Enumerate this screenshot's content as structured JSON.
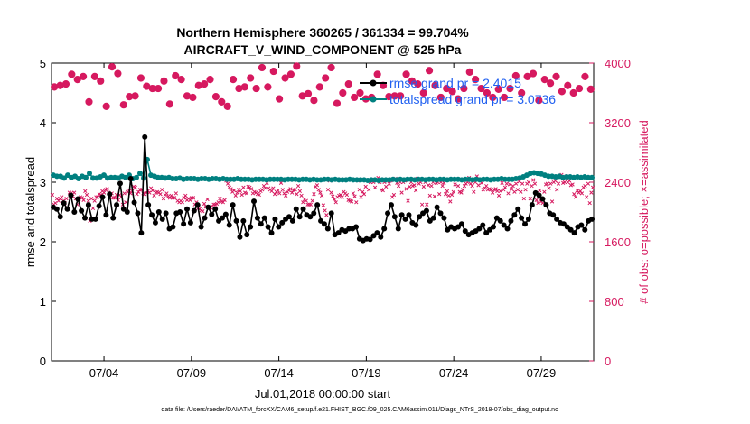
{
  "chart_data": {
    "type": "line",
    "title_line1": "Northern Hemisphere 360265 / 361334 = 99.704%",
    "title_line2": "AIRCRAFT_V_WIND_COMPONENT @ 525 hPa",
    "xlabel": "Jul.01,2018 00:00:00 start",
    "ylabel_left": "rmse and totalspread",
    "ylabel_right": "# of obs: o=possible; ×=assimilated",
    "ylim_left": [
      0,
      5
    ],
    "ylim_right": [
      0,
      4000
    ],
    "xlim_days": [
      1,
      32
    ],
    "x_ticks": [
      {
        "day": 4,
        "label": "07/04"
      },
      {
        "day": 9,
        "label": "07/09"
      },
      {
        "day": 14,
        "label": "07/14"
      },
      {
        "day": 19,
        "label": "07/19"
      },
      {
        "day": 24,
        "label": "07/24"
      },
      {
        "day": 29,
        "label": "07/29"
      }
    ],
    "y_ticks_left": [
      "0",
      "1",
      "2",
      "3",
      "4",
      "5"
    ],
    "y_ticks_right": [
      "0",
      "800",
      "1600",
      "2400",
      "3200",
      "4000"
    ],
    "legend": [
      {
        "label": "rmse grand pr = 2.4015",
        "color": "#000000"
      },
      {
        "label": "totalspread grand pr = 3.0736",
        "color": "#008080"
      }
    ],
    "series": [
      {
        "name": "rmse",
        "axis": "left",
        "color": "#000000",
        "values": [
          2.58,
          2.55,
          2.42,
          2.65,
          2.55,
          2.78,
          2.5,
          2.72,
          2.52,
          2.4,
          2.62,
          2.38,
          2.38,
          2.6,
          2.75,
          2.45,
          2.8,
          2.4,
          2.62,
          2.98,
          2.55,
          2.5,
          3.06,
          2.66,
          2.48,
          2.15,
          3.76,
          2.62,
          2.45,
          2.32,
          2.5,
          2.38,
          2.48,
          2.22,
          2.25,
          2.48,
          2.5,
          2.3,
          2.55,
          2.32,
          2.52,
          2.62,
          2.25,
          2.4,
          2.58,
          2.46,
          2.55,
          2.35,
          2.4,
          2.46,
          2.28,
          2.62,
          2.35,
          2.08,
          2.35,
          2.12,
          2.25,
          2.68,
          2.4,
          2.3,
          2.4,
          2.25,
          2.15,
          2.38,
          2.25,
          2.32,
          2.38,
          2.42,
          2.35,
          2.55,
          2.42,
          2.55,
          2.45,
          2.42,
          2.48,
          2.62,
          2.35,
          2.3,
          2.22,
          2.48,
          2.12,
          2.15,
          2.2,
          2.18,
          2.22,
          2.22,
          2.25,
          2.05,
          2.02,
          2.05,
          2.04,
          2.1,
          2.15,
          2.08,
          2.22,
          2.48,
          2.62,
          2.42,
          2.22,
          2.45,
          2.38,
          2.45,
          2.32,
          2.28,
          2.42,
          2.48,
          2.52,
          2.35,
          2.4,
          2.58,
          2.48,
          2.4,
          2.2,
          2.25,
          2.22,
          2.25,
          2.3,
          2.18,
          2.12,
          2.15,
          2.18,
          2.22,
          2.28,
          2.15,
          2.2,
          2.25,
          2.4,
          2.35,
          2.28,
          2.22,
          2.35,
          2.45,
          2.55,
          2.4,
          2.3,
          2.38,
          2.62,
          2.82,
          2.78,
          2.72,
          2.62,
          2.48,
          2.45,
          2.38,
          2.32,
          2.3,
          2.25,
          2.2,
          2.15,
          2.25,
          2.28,
          2.2,
          2.35,
          2.38
        ]
      },
      {
        "name": "totalspread",
        "axis": "left",
        "color": "#008080",
        "values": [
          3.12,
          3.1,
          3.1,
          3.07,
          3.12,
          3.08,
          3.1,
          3.06,
          3.1,
          3.08,
          3.15,
          3.07,
          3.07,
          3.09,
          3.12,
          3.07,
          3.08,
          3.08,
          3.07,
          3.1,
          3.08,
          3.12,
          3.06,
          3.08,
          3.15,
          3.07,
          3.38,
          3.12,
          3.1,
          3.08,
          3.08,
          3.07,
          3.08,
          3.06,
          3.06,
          3.07,
          3.05,
          3.06,
          3.06,
          3.06,
          3.05,
          3.06,
          3.06,
          3.05,
          3.06,
          3.06,
          3.05,
          3.06,
          3.05,
          3.05,
          3.05,
          3.06,
          3.05,
          3.05,
          3.05,
          3.04,
          3.05,
          3.05,
          3.05,
          3.04,
          3.05,
          3.05,
          3.05,
          3.05,
          3.04,
          3.05,
          3.05,
          3.05,
          3.04,
          3.05,
          3.05,
          3.04,
          3.05,
          3.04,
          3.04,
          3.05,
          3.05,
          3.04,
          3.05,
          3.04,
          3.04,
          3.04,
          3.05,
          3.04,
          3.04,
          3.04,
          3.04,
          3.03,
          3.04,
          3.04,
          3.03,
          3.04,
          3.04,
          3.04,
          3.05,
          3.04,
          3.05,
          3.04,
          3.05,
          3.05,
          3.04,
          3.05,
          3.05,
          3.04,
          3.05,
          3.05,
          3.04,
          3.05,
          3.05,
          3.04,
          3.05,
          3.05,
          3.05,
          3.04,
          3.05,
          3.05,
          3.04,
          3.05,
          3.04,
          3.05,
          3.05,
          3.04,
          3.05,
          3.05,
          3.06,
          3.05,
          3.05,
          3.05,
          3.06,
          3.07,
          3.09,
          3.12,
          3.15,
          3.16,
          3.15,
          3.14,
          3.12,
          3.1,
          3.1,
          3.09,
          3.1,
          3.08,
          3.09,
          3.09,
          3.08,
          3.09,
          3.08,
          3.09,
          3.08,
          3.08
        ]
      },
      {
        "name": "possible",
        "axis": "right",
        "color": "#d6195f",
        "values": [
          3680,
          3700,
          3720,
          3850,
          3780,
          3820,
          3480,
          3820,
          3760,
          3420,
          3950,
          3860,
          3440,
          3550,
          3560,
          3800,
          3690,
          3660,
          3660,
          3760,
          3450,
          3830,
          3780,
          3560,
          3540,
          3700,
          3720,
          3780,
          3550,
          3480,
          3420,
          3780,
          3660,
          3680,
          3800,
          3660,
          3940,
          3680,
          3890,
          3520,
          3800,
          3850,
          3960,
          3560,
          3590,
          3500,
          3680,
          3800,
          3940,
          3460,
          3600,
          3720,
          3540,
          3600,
          3520,
          3540,
          3850,
          3700,
          3550,
          3560,
          3560,
          3850,
          3760,
          3720,
          3600,
          3900,
          3700,
          3540,
          3660,
          3620,
          3520,
          3660,
          3880,
          3780,
          3660,
          3600,
          3540,
          3650,
          3540,
          3660,
          3830,
          3600,
          3820,
          3860,
          3500,
          3780,
          3730,
          3820,
          3620,
          3700,
          3600,
          3660,
          3820,
          3650
        ]
      },
      {
        "name": "assimilated",
        "axis": "right",
        "color": "#d6195f",
        "values": [
          2230,
          2100,
          2120,
          2180,
          2150,
          2180,
          2200,
          2150,
          2120,
          2180,
          2050,
          2260,
          2250,
          2210,
          2260,
          2180,
          2100,
          2170,
          2200,
          2190,
          2160,
          2280,
          2230,
          2150,
          1880,
          2180,
          2050,
          2150,
          2200,
          2200,
          2240,
          2230,
          2280,
          2260,
          2300,
          2310,
          2260,
          2200,
          2250,
          2190,
          2190,
          2230,
          2160,
          2230,
          2200,
          2100,
          2250,
          2130,
          2270,
          2290,
          2250,
          2280,
          2340,
          2330,
          2240,
          2270,
          2300,
          2300,
          2250,
          2240,
          2260,
          2290,
          2260,
          2320,
          2290,
          2220,
          2260,
          2270,
          2260,
          2240,
          2300,
          2180,
          2230,
          2250,
          2210,
          2190,
          2220,
          2190,
          2190,
          2250,
          2150,
          2130,
          2150,
          2130,
          2190,
          2220,
          2160,
          2180,
          2160,
          2190,
          2190,
          2100,
          2130,
          2050,
          2040,
          2020,
          2010,
          2110,
          2070,
          2170,
          2050,
          2060,
          2080,
          2100,
          2100,
          2110,
          2130,
          2180,
          2140,
          2130,
          2160,
          2420,
          2380,
          2330,
          2310,
          2270,
          2290,
          2220,
          2260,
          2300,
          2280,
          2230,
          2330,
          2260,
          2250,
          2340,
          2330,
          2310,
          2250,
          2270,
          2260,
          2240,
          2230,
          2280,
          2300,
          2350,
          2320,
          2390,
          2320,
          2300,
          2280,
          2320,
          2240,
          2270,
          2290,
          2250,
          2390,
          2300,
          2250,
          2220,
          2270,
          2290,
          2310,
          2260,
          2290,
          2300,
          2240,
          2350,
          2280,
          2220,
          2130,
          2170,
          2150,
          2100,
          2100,
          2100,
          2150,
          2240,
          2340,
          2360,
          2300,
          2260,
          2220,
          2090,
          2020,
          1960,
          2300,
          2420,
          2260,
          2210,
          2170,
          2130,
          2200,
          2220,
          2230,
          2200,
          2270,
          2250,
          2230,
          2160,
          2150,
          2140,
          2250,
          2210,
          2130,
          2420,
          2300,
          2200,
          2270,
          2240,
          2340,
          2430,
          2300,
          2400,
          2420,
          2400,
          2330,
          2420,
          2460,
          2400,
          2300,
          2290,
          2400,
          2340,
          2420,
          2380,
          2420,
          2200,
          2230,
          2450,
          2390,
          2350,
          2400,
          2260,
          2400,
          2420,
          2310,
          2150,
          2340,
          2400,
          2350,
          2360,
          2290,
          2450,
          2380,
          2400,
          2100,
          2340,
          2400,
          2100,
          2360,
          2220,
          2350,
          2400,
          2210,
          2390,
          2400,
          2240,
          2400,
          2350,
          2390,
          2240,
          2280,
          2220,
          2140,
          2230,
          2270,
          2370,
          2430,
          2350,
          2270,
          2260,
          2300,
          2350,
          2380,
          2400,
          2460,
          2380,
          2350,
          2270,
          2400,
          2480,
          2360,
          2430,
          2390,
          2300,
          2320,
          2350,
          2300,
          2310,
          2300,
          2260,
          2300,
          2310,
          2280,
          2220,
          2280,
          2390,
          2300,
          2330,
          2380,
          2250,
          2370,
          2310,
          2350,
          2270,
          2380,
          2300,
          2410,
          2270,
          2380,
          2180,
          2300,
          2380,
          2400,
          2180,
          2350,
          2430,
          2380,
          2160,
          2120,
          2290,
          2140,
          2120,
          2270,
          2370,
          2380,
          2320,
          2380,
          2140,
          2400,
          2420,
          2300,
          2380,
          2470,
          2500,
          2390,
          2400,
          2480,
          2400,
          2420,
          2360,
          2370,
          2240,
          2200,
          2290,
          2260,
          2280,
          2250,
          2330,
          2350,
          2200,
          2380,
          2120,
          2260,
          2330
        ]
      }
    ],
    "footer": "data file: /Users/raeder/DAI/ATM_forcXX/CAM6_setup/f.e21.FHIST_BGC.f09_025.CAM6assim.011/Diags_NTrS_2018-07/obs_diag_output.nc"
  }
}
